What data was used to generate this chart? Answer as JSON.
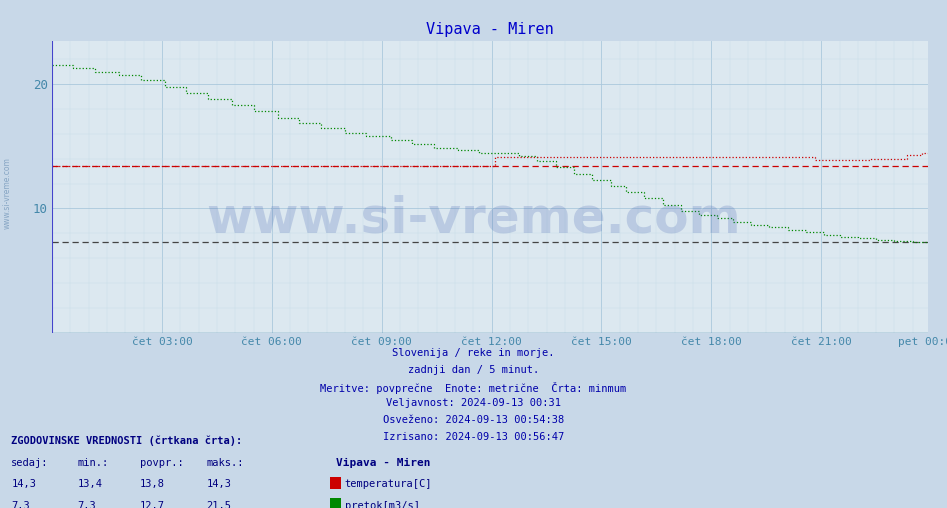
{
  "title": "Vipava - Miren",
  "bg_color": "#c8d8e8",
  "plot_bg_color": "#dce8f0",
  "title_color": "#0000cc",
  "axis_color": "#4488aa",
  "grid_color_major": "#aac8dc",
  "grid_color_minor": "#c8dce8",
  "temp_color": "#cc0000",
  "flow_color": "#008800",
  "hist_temp_color": "#cc0000",
  "hist_flow_color": "#333333",
  "text_color": "#0000aa",
  "xtick_color": "#4488aa",
  "ytick_color": "#4488aa",
  "xtick_labels": [
    "čet 03:00",
    "čet 06:00",
    "čet 09:00",
    "čet 12:00",
    "čet 15:00",
    "čet 18:00",
    "čet 21:00",
    "pet 00:00"
  ],
  "xtick_positions": [
    36,
    72,
    108,
    144,
    180,
    216,
    252,
    287
  ],
  "ylim": [
    0,
    23.5
  ],
  "yticks": [
    10,
    20
  ],
  "n_points": 288,
  "info_lines": [
    "Slovenija / reke in morje.",
    "zadnji dan / 5 minut.",
    "Meritve: povprečne  Enote: metrične  Črta: minmum",
    "Veljavnost: 2024-09-13 00:31",
    "Osveženo: 2024-09-13 00:54:38",
    "Izrisano: 2024-09-13 00:56:47"
  ],
  "table_header": "ZGODOVINSKE VREDNOSTI (črtkana črta):",
  "table_cols": [
    "sedaj:",
    "min.:",
    "povpr.:",
    "maks.:"
  ],
  "table_temp": [
    14.3,
    13.4,
    13.8,
    14.3
  ],
  "table_flow": [
    7.3,
    7.3,
    12.7,
    21.5
  ],
  "legend_title": "Vipava - Miren",
  "legend_temp_label": "temperatura[C]",
  "legend_flow_label": "pretok[m3/s]",
  "watermark": "www.si-vreme.com",
  "side_label": "www.si-vreme.com",
  "hist_temp_min": 13.4,
  "hist_flow_min": 7.3
}
